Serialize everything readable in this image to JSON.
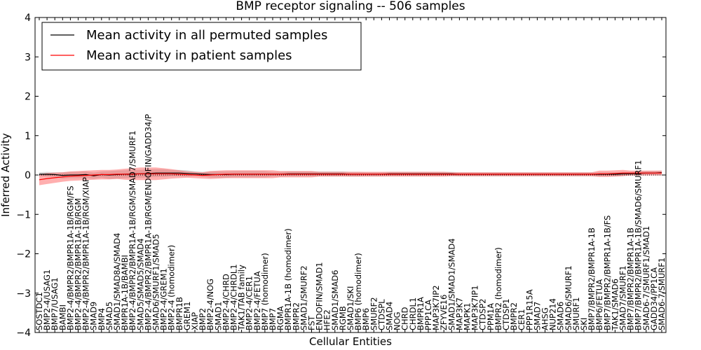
{
  "chart_data": {
    "type": "line",
    "title": "BMP receptor signaling -- 506 samples",
    "xlabel": "Cellular Entities",
    "ylabel": "Inferred Activity",
    "ylim": [
      -4,
      4
    ],
    "yticks": [
      "4",
      "3",
      "2",
      "1",
      "0",
      "−1",
      "−2",
      "−3",
      "−4"
    ],
    "legend_position": "top-left",
    "categories": [
      "SOSTDC1",
      "BMP2-4/USAG1",
      "BMP7/USAG1",
      "BAMBI",
      "BMP2-4/BMPR2/BMPR1A-1B/RGM/FS",
      "BMP2-4/BMPR2/BMPR1A-1B/RGM",
      "BMP2-4/BMPR2/BMPR1A-1B/RGM/XIAP",
      "SMAD9",
      "BMP4",
      "SMAD5",
      "SMAD1/SMAD8A/SMAD4",
      "BMPR1A-1B/BAMBI",
      "BMP2-4/BMPR2/BMPR1A-1B/RGM/SMAD7/SMURF1",
      "SMAD5/SMAD5/SMAD4",
      "BMP2-4/BMPR2/BMPR1A-1B/RGM/ENDOFIN/GADD34/P",
      "SMAD6/SMURF1/SMAD5",
      "BMP2-4/GREM1",
      "BMP2-4 (homodimer)",
      "BMPR1B",
      "GREM1",
      "XIAP",
      "BMP2",
      "BMP2-4/NOG",
      "SMAD1",
      "BMP2-4/CHRD",
      "BMP2-4/CHRDL1",
      "TAK1/TAB family",
      "BMP2-4/CER1",
      "BMP2-4/FETUA",
      "BMP7 (homodimer)",
      "BMP7",
      "RGMA",
      "BMPR1A-1B (homodimer)",
      "BMPR2",
      "SMAD1/SMURF2",
      "FST",
      "ENDOFIN/SMAD1",
      "HFE2",
      "SMAD1/SMAD6",
      "RGMB",
      "SMAD1/SKI",
      "BMP6 (homodimer)",
      "BMP6",
      "SMURF2",
      "CTDSPL",
      "SMAD4",
      "NOG",
      "CHRD",
      "CHRDL1",
      "BMPR1A",
      "PPP1CA",
      "MAP3K7IP2",
      "ZFYVE16",
      "SMAD1/SMAD1/SMAD4",
      "MAP3K7",
      "MAPK1",
      "MAP3K7IP1",
      "CTDSP2",
      "PPM1A",
      "BMPR2 (homodimer)",
      "CTDSP1",
      "BMPR2",
      "CER1",
      "PPP1R15A",
      "SMAD7",
      "AHSG",
      "NUP214",
      "SMAD6",
      "SMAD6/SMURF1",
      "SMURF1",
      "SKI",
      "BMP7/BMPR2/BMPR1A-1B",
      "BMP6/FETUA",
      "BMP7/BMPR2/BMPR1A-1B/FS",
      "TAK1/SMAD6",
      "SMAD7/SMURF1",
      "BMP7/BMPR2/BMPR1A-1B",
      "BMP7/BMPR2/BMPR1A-1B/SMAD6/SMURF1",
      "SMAD6-7/SMURF1/SMAD1",
      "GADD34/PP1CA",
      "SMAD6-7/SMURF1"
    ],
    "series": [
      {
        "name": "Mean activity in all permuted samples",
        "color": "#000000",
        "values": [
          0.02,
          0.02,
          0.01,
          -0.01,
          0.0,
          0.0,
          0.01,
          -0.02,
          0.01,
          0.0,
          0.01,
          0.02,
          0.03,
          0.03,
          0.04,
          0.05,
          0.05,
          0.05,
          0.05,
          0.04,
          0.03,
          0.02,
          0.01,
          0.01,
          0.01,
          0.02,
          0.02,
          0.02,
          0.02,
          0.02,
          0.02,
          0.02,
          0.03,
          0.03,
          0.03,
          0.03,
          0.03,
          0.03,
          0.03,
          0.03,
          0.02,
          0.02,
          0.02,
          0.02,
          0.02,
          0.03,
          0.03,
          0.03,
          0.03,
          0.03,
          0.03,
          0.03,
          0.03,
          0.03,
          0.02,
          0.02,
          0.02,
          0.02,
          0.02,
          0.02,
          0.02,
          0.02,
          0.02,
          0.02,
          0.02,
          0.02,
          0.02,
          0.02,
          0.02,
          0.02,
          0.02,
          0.02,
          0.02,
          0.02,
          0.02,
          0.03,
          0.03,
          0.04,
          0.05,
          0.05,
          0.06
        ],
        "band": [
          0.05,
          0.06,
          0.06,
          0.08,
          0.08,
          0.08,
          0.08,
          0.08,
          0.08,
          0.1,
          0.1,
          0.1,
          0.1,
          0.1,
          0.1,
          0.1,
          0.1,
          0.08,
          0.08,
          0.08,
          0.06,
          0.06,
          0.08,
          0.08,
          0.08,
          0.08,
          0.08,
          0.08,
          0.08,
          0.08,
          0.06,
          0.06,
          0.06,
          0.06,
          0.06,
          0.06,
          0.06,
          0.06,
          0.06,
          0.06,
          0.06,
          0.06,
          0.05,
          0.05,
          0.05,
          0.05,
          0.05,
          0.05,
          0.05,
          0.05,
          0.05,
          0.05,
          0.05,
          0.05,
          0.05,
          0.05,
          0.05,
          0.05,
          0.05,
          0.05,
          0.05,
          0.05,
          0.05,
          0.05,
          0.05,
          0.05,
          0.05,
          0.05,
          0.05,
          0.05,
          0.05,
          0.05,
          0.05,
          0.05,
          0.05,
          0.05,
          0.05,
          0.05,
          0.05,
          0.05,
          0.05
        ]
      },
      {
        "name": "Mean activity in patient samples",
        "color": "#ff0000",
        "values": [
          -0.12,
          -0.09,
          -0.07,
          -0.05,
          -0.03,
          -0.02,
          -0.01,
          0.0,
          0.01,
          0.01,
          0.02,
          0.02,
          0.02,
          0.03,
          0.03,
          0.03,
          0.03,
          0.03,
          0.02,
          0.01,
          0.0,
          -0.01,
          0.0,
          0.01,
          0.02,
          0.02,
          0.02,
          0.02,
          0.02,
          0.02,
          0.02,
          0.02,
          0.02,
          0.02,
          0.02,
          0.02,
          0.02,
          0.02,
          0.02,
          0.02,
          0.02,
          0.02,
          0.02,
          0.02,
          0.02,
          0.02,
          0.02,
          0.02,
          0.02,
          0.02,
          0.02,
          0.02,
          0.02,
          0.02,
          0.02,
          0.02,
          0.02,
          0.02,
          0.02,
          0.02,
          0.02,
          0.02,
          0.02,
          0.02,
          0.02,
          0.02,
          0.02,
          0.02,
          0.02,
          0.02,
          0.02,
          0.02,
          0.03,
          0.03,
          0.04,
          0.05,
          0.05,
          0.05,
          0.05,
          0.05,
          0.05
        ],
        "band": [
          0.14,
          0.14,
          0.13,
          0.12,
          0.12,
          0.12,
          0.12,
          0.12,
          0.12,
          0.12,
          0.12,
          0.14,
          0.15,
          0.16,
          0.16,
          0.16,
          0.14,
          0.12,
          0.1,
          0.08,
          0.08,
          0.08,
          0.1,
          0.1,
          0.1,
          0.1,
          0.1,
          0.1,
          0.1,
          0.1,
          0.1,
          0.08,
          0.08,
          0.08,
          0.08,
          0.08,
          0.06,
          0.06,
          0.06,
          0.06,
          0.06,
          0.06,
          0.06,
          0.06,
          0.06,
          0.06,
          0.06,
          0.06,
          0.06,
          0.06,
          0.06,
          0.06,
          0.06,
          0.05,
          0.05,
          0.05,
          0.05,
          0.05,
          0.05,
          0.05,
          0.05,
          0.05,
          0.05,
          0.05,
          0.05,
          0.05,
          0.05,
          0.05,
          0.05,
          0.05,
          0.05,
          0.05,
          0.08,
          0.08,
          0.08,
          0.08,
          0.06,
          0.06,
          0.06,
          0.06,
          0.06
        ]
      }
    ]
  }
}
